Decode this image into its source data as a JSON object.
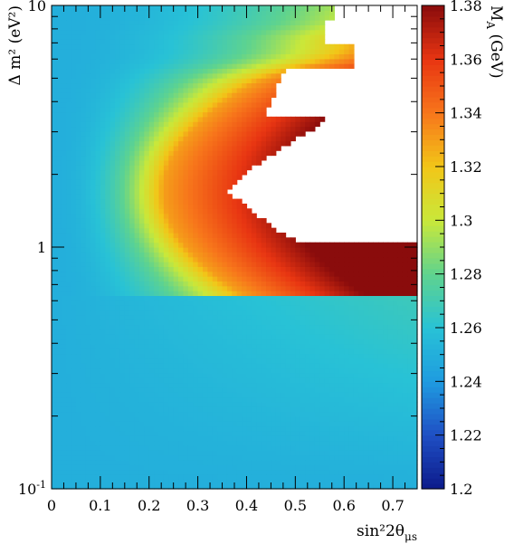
{
  "chart_data": {
    "type": "heatmap",
    "title": "",
    "x_axis": {
      "label": "sin²2θ",
      "label_subscript": "μs",
      "range": [
        0,
        0.75
      ],
      "scale": "linear",
      "ticks": [
        0,
        0.1,
        0.2,
        0.3,
        0.4,
        0.5,
        0.6,
        0.7
      ],
      "tick_labels": [
        "0",
        "0.1",
        "0.2",
        "0.3",
        "0.4",
        "0.5",
        "0.6",
        "0.7"
      ]
    },
    "y_axis": {
      "label": "Δ m² (eV²)",
      "range": [
        0.1,
        10
      ],
      "scale": "log",
      "ticks": [
        0.1,
        1,
        10
      ],
      "tick_labels": {
        "0.1": {
          "base": "10",
          "exp": "-1"
        },
        "1": {
          "base": "1",
          "exp": ""
        },
        "10": {
          "base": "10",
          "exp": ""
        }
      }
    },
    "z_axis": {
      "label": "M",
      "label_subscript": "A",
      "label_unit": " (GeV)",
      "range": [
        1.2,
        1.38
      ],
      "ticks": [
        1.2,
        1.22,
        1.24,
        1.26,
        1.28,
        1.3,
        1.32,
        1.34,
        1.36,
        1.38
      ],
      "tick_labels": [
        "1.2",
        "1.22",
        "1.24",
        "1.26",
        "1.28",
        "1.3",
        "1.32",
        "1.34",
        "1.36",
        "1.38"
      ]
    },
    "colormap": "rainbow",
    "colormap_stops": [
      "#0c1a8a",
      "#1f4fc4",
      "#1f9be0",
      "#28c2d6",
      "#5fd38e",
      "#c9e83a",
      "#f2c618",
      "#f7761b",
      "#e83512",
      "#8a0c0c"
    ],
    "empty_region_color": "#ffffff",
    "description_features": {
      "background_z": 1.25,
      "ridge_shape": "z rises with sin²2θ along a contour that bulges toward the left near Δm²≈1.7 eV²",
      "empty_regions": "white unfilled regions on the right side where no fit value exists"
    }
  }
}
